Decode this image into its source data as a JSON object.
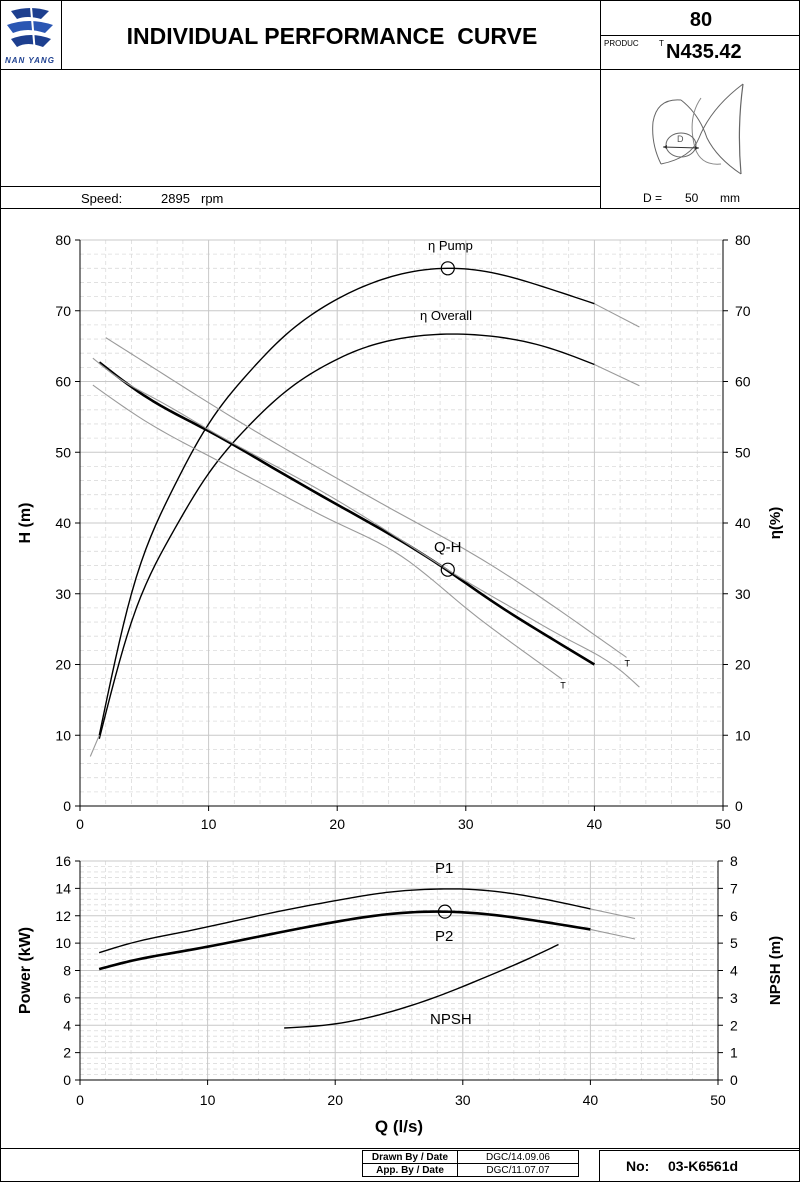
{
  "header": {
    "brand": "NAN YANG",
    "title": "INDIVIDUAL PERFORMANCE  CURVE",
    "model_number": "80",
    "product_label": "PRODUC",
    "product_label_t": "T",
    "product_code": "N435.42"
  },
  "info": {
    "speed_label": "Speed:",
    "speed_value": "2895",
    "speed_unit": "rpm",
    "diameter_label": "D =",
    "diameter_value": "50",
    "diameter_unit": "mm",
    "impeller_marker": "D"
  },
  "footer": {
    "drawn_label": "Drawn By / Date",
    "drawn_value": "DGC/14.09.06",
    "approved_label": "App. By / Date",
    "approved_value": "DGC/11.07.07",
    "doc_no_label": "No:",
    "doc_no_value": "03-K6561d"
  },
  "chart_data": [
    {
      "type": "line",
      "xlabel": "",
      "ylabel": "H (m)",
      "y2label": "η(%)",
      "xlim": [
        0,
        50
      ],
      "ylim": [
        0,
        80
      ],
      "y2lim": [
        0,
        80
      ],
      "xticks": [
        0,
        10,
        20,
        30,
        40,
        50
      ],
      "yticks": [
        0,
        10,
        20,
        30,
        40,
        50,
        60,
        70,
        80
      ],
      "grid": true,
      "series": [
        {
          "name": "Q-H",
          "axis": "left",
          "style": "bold",
          "x": [
            1.5,
            5,
            10,
            15,
            20,
            24,
            28,
            32,
            36,
            40
          ],
          "y": [
            62.7,
            58,
            53,
            47.8,
            42.6,
            38.5,
            34,
            29,
            24.4,
            20
          ]
        },
        {
          "name": "η Pump",
          "axis": "right",
          "style": "thin",
          "x": [
            1.5,
            4,
            7,
            10,
            13,
            16,
            19,
            22,
            25,
            28.6,
            32,
            36,
            40
          ],
          "y": [
            10,
            30,
            44,
            54,
            61,
            66.6,
            70.6,
            73.4,
            75.2,
            76,
            75.4,
            73.4,
            71
          ]
        },
        {
          "name": "η Overall",
          "axis": "right",
          "style": "thin",
          "x": [
            1.5,
            4,
            7,
            10,
            13,
            16,
            19,
            22,
            25,
            28.5,
            32,
            36,
            40
          ],
          "y": [
            9.5,
            26,
            38,
            47,
            53.5,
            58.6,
            62.2,
            64.7,
            66.1,
            66.7,
            66.4,
            65,
            62.4
          ]
        },
        {
          "name": "",
          "axis": "left",
          "style": "tolerance",
          "label": "T",
          "x": [
            2,
            6,
            10,
            15,
            20,
            25,
            30,
            35,
            40,
            42.5
          ],
          "y": [
            66.2,
            61.6,
            57,
            51.5,
            46.3,
            41.2,
            36.2,
            30.5,
            24.2,
            21
          ]
        },
        {
          "name": "",
          "axis": "left",
          "style": "tolerance",
          "label": "T",
          "x": [
            1,
            5,
            10,
            15,
            20,
            25,
            30,
            34,
            37.5
          ],
          "y": [
            59.5,
            54.5,
            49.5,
            44.7,
            40,
            35.3,
            28,
            22.5,
            17.9
          ]
        },
        {
          "name": "",
          "axis": "left",
          "style": "tolerance",
          "x": [
            1,
            3,
            6,
            10,
            14,
            18,
            22,
            26,
            30,
            34,
            38,
            42,
            43.5
          ],
          "y": [
            63.3,
            60.5,
            57.4,
            53.2,
            49.2,
            45.3,
            41,
            36.4,
            31.8,
            27.6,
            23.5,
            19.2,
            16.8
          ]
        },
        {
          "name": "",
          "axis": "right",
          "style": "tolerance",
          "x": [
            40,
            43.5
          ],
          "y": [
            71,
            67.7
          ]
        },
        {
          "name": "",
          "axis": "right",
          "style": "tolerance",
          "x": [
            40,
            43.5
          ],
          "y": [
            62.4,
            59.4
          ]
        },
        {
          "name": "",
          "axis": "right",
          "style": "tolerance",
          "x": [
            0.8,
            1.5
          ],
          "y": [
            7,
            10
          ]
        }
      ],
      "duty_points": [
        {
          "series": "η Pump",
          "x": 28.6,
          "y": 76
        },
        {
          "series": "Q-H",
          "x": 28.6,
          "y": 33.4
        }
      ]
    },
    {
      "type": "line",
      "xlabel": "Q (l/s)",
      "ylabel": "Power (kW)",
      "y2label": "NPSH (m)",
      "xlim": [
        0,
        50
      ],
      "ylim": [
        0,
        16
      ],
      "y2lim": [
        0,
        8
      ],
      "xticks": [
        0,
        10,
        20,
        30,
        40,
        50
      ],
      "yticks": [
        0,
        2,
        4,
        6,
        8,
        10,
        12,
        14,
        16
      ],
      "y2ticks": [
        0,
        1,
        2,
        3,
        4,
        5,
        6,
        7,
        8
      ],
      "grid": true,
      "series": [
        {
          "name": "P1",
          "axis": "left",
          "style": "thin",
          "x": [
            1.5,
            4,
            8,
            12,
            16,
            20,
            24,
            28,
            30,
            34,
            37,
            40
          ],
          "y": [
            9.3,
            10,
            10.8,
            11.6,
            12.4,
            13.1,
            13.7,
            13.95,
            13.95,
            13.6,
            13.1,
            12.5
          ]
        },
        {
          "name": "P2",
          "axis": "left",
          "style": "bold",
          "x": [
            1.5,
            4,
            8,
            12,
            16,
            20,
            24,
            28.5,
            32,
            36,
            40
          ],
          "y": [
            8.1,
            8.7,
            9.4,
            10.1,
            10.85,
            11.55,
            12.1,
            12.3,
            12.1,
            11.6,
            11
          ]
        },
        {
          "name": "NPSH",
          "axis": "right",
          "style": "thin",
          "x": [
            16,
            20,
            24,
            28,
            32,
            35,
            37.5
          ],
          "y": [
            1.9,
            2.05,
            2.45,
            3.05,
            3.8,
            4.4,
            4.95
          ]
        },
        {
          "name": "",
          "axis": "left",
          "style": "tolerance",
          "x": [
            40,
            43.5
          ],
          "y": [
            12.5,
            11.8
          ]
        },
        {
          "name": "",
          "axis": "left",
          "style": "tolerance",
          "x": [
            40,
            43.5
          ],
          "y": [
            11,
            10.3
          ]
        }
      ],
      "duty_points": [
        {
          "series": "P2",
          "x": 28.6,
          "y": 12.3
        }
      ]
    }
  ],
  "colors": {
    "line": "#000000",
    "tolerance": "#9a9a9a",
    "grid_major": "#c8c8c8",
    "grid_minor": "#dcdcdc"
  }
}
